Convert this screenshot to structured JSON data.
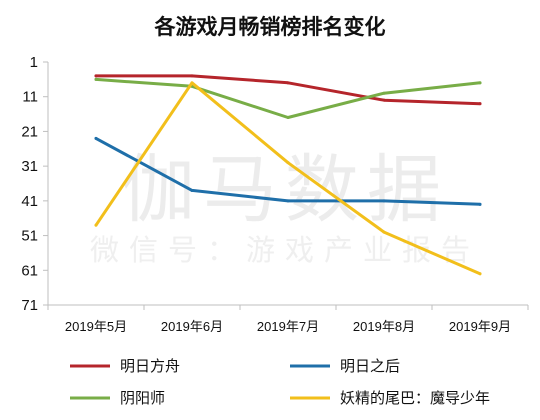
{
  "chart_data": {
    "type": "line",
    "title": "各游戏月畅销榜排名变化",
    "categories": [
      "2019年5月",
      "2019年6月",
      "2019年7月",
      "2019年8月",
      "2019年9月"
    ],
    "y_ticks": [
      1,
      11,
      21,
      31,
      41,
      51,
      61,
      71
    ],
    "ylim": [
      71,
      1
    ],
    "y_reversed": true,
    "grid": false,
    "legend_position": "bottom",
    "watermark": {
      "line1": "伽马数据",
      "line2": "微信号：游戏产业报告"
    },
    "series": [
      {
        "name": "明日方舟",
        "color": "#b5252b",
        "values": [
          5,
          5,
          7,
          12,
          13
        ]
      },
      {
        "name": "明日之后",
        "color": "#1f6fa9",
        "values": [
          23,
          38,
          41,
          41,
          42
        ]
      },
      {
        "name": "阴阳师",
        "color": "#78ad47",
        "values": [
          6,
          8,
          17,
          10,
          7
        ]
      },
      {
        "name": "妖精的尾巴：魔导少年",
        "color": "#f2bf1b",
        "values": [
          48,
          7,
          30,
          50,
          62
        ]
      }
    ]
  }
}
